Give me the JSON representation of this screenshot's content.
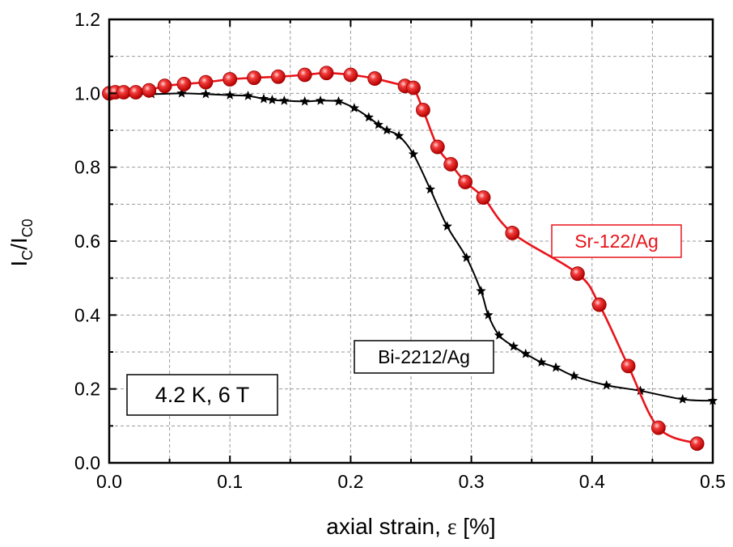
{
  "chart_data": {
    "type": "line",
    "xlabel": {
      "prefix": "axial strain, ",
      "symbol": "ε",
      "suffix": " [%]"
    },
    "ylabel": {
      "main": "I",
      "sub1": "C",
      "sep": "/I",
      "sub2": "C0"
    },
    "xlim": [
      0.0,
      0.5
    ],
    "ylim": [
      0.0,
      1.2
    ],
    "x_ticks": [
      "0.0",
      "0.1",
      "0.2",
      "0.3",
      "0.4",
      "0.5"
    ],
    "y_ticks": [
      "0.0",
      "0.2",
      "0.4",
      "0.6",
      "0.8",
      "1.0",
      "1.2"
    ],
    "grid": true,
    "condition_label": "4.2 K, 6 T",
    "series": [
      {
        "name": "Sr-122/Ag",
        "color": "#e8141a",
        "marker": "sphere",
        "points": [
          [
            0.0,
            1.0
          ],
          [
            0.005,
            1.003
          ],
          [
            0.012,
            1.003
          ],
          [
            0.022,
            1.003
          ],
          [
            0.033,
            1.008
          ],
          [
            0.046,
            1.02
          ],
          [
            0.062,
            1.025
          ],
          [
            0.08,
            1.03
          ],
          [
            0.1,
            1.038
          ],
          [
            0.12,
            1.042
          ],
          [
            0.14,
            1.045
          ],
          [
            0.162,
            1.05
          ],
          [
            0.18,
            1.055
          ],
          [
            0.2,
            1.05
          ],
          [
            0.22,
            1.04
          ],
          [
            0.245,
            1.02
          ],
          [
            0.252,
            1.015
          ],
          [
            0.26,
            0.955
          ],
          [
            0.272,
            0.855
          ],
          [
            0.283,
            0.808
          ],
          [
            0.295,
            0.76
          ],
          [
            0.31,
            0.718
          ],
          [
            0.334,
            0.622
          ],
          [
            0.388,
            0.512
          ],
          [
            0.406,
            0.428
          ],
          [
            0.43,
            0.262
          ],
          [
            0.455,
            0.095
          ],
          [
            0.487,
            0.052
          ]
        ]
      },
      {
        "name": "Bi-2212/Ag",
        "color": "#000000",
        "marker": "star",
        "points": [
          [
            0.0,
            1.0
          ],
          [
            0.035,
            0.998
          ],
          [
            0.06,
            1.0
          ],
          [
            0.08,
            0.998
          ],
          [
            0.1,
            0.995
          ],
          [
            0.115,
            0.993
          ],
          [
            0.128,
            0.985
          ],
          [
            0.135,
            0.982
          ],
          [
            0.145,
            0.98
          ],
          [
            0.162,
            0.978
          ],
          [
            0.175,
            0.98
          ],
          [
            0.19,
            0.978
          ],
          [
            0.203,
            0.96
          ],
          [
            0.215,
            0.935
          ],
          [
            0.223,
            0.915
          ],
          [
            0.23,
            0.9
          ],
          [
            0.24,
            0.885
          ],
          [
            0.252,
            0.835
          ],
          [
            0.266,
            0.74
          ],
          [
            0.28,
            0.64
          ],
          [
            0.296,
            0.555
          ],
          [
            0.308,
            0.465
          ],
          [
            0.314,
            0.4
          ],
          [
            0.323,
            0.345
          ],
          [
            0.335,
            0.315
          ],
          [
            0.345,
            0.295
          ],
          [
            0.358,
            0.272
          ],
          [
            0.37,
            0.258
          ],
          [
            0.385,
            0.235
          ],
          [
            0.412,
            0.21
          ],
          [
            0.44,
            0.195
          ],
          [
            0.475,
            0.172
          ],
          [
            0.5,
            0.168
          ]
        ]
      }
    ],
    "annotations": [
      {
        "series": "Sr-122/Ag",
        "text": "Sr-122/Ag",
        "color": "#e8141a"
      },
      {
        "series": "Bi-2212/Ag",
        "text": "Bi-2212/Ag",
        "color": "#000000"
      }
    ]
  }
}
